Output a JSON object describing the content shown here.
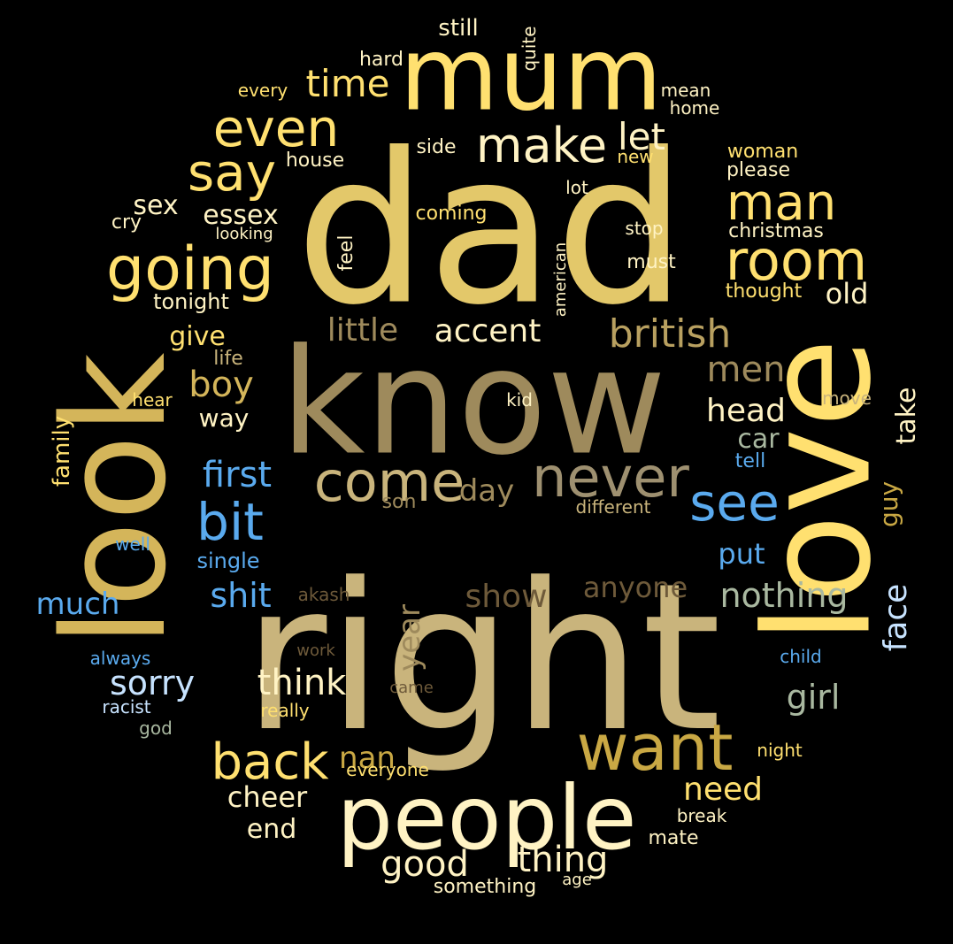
{
  "colors": {
    "background": "#000000",
    "gold": "#e3c86a",
    "yellow": "#ffe070",
    "khaki": "#c9b47c",
    "tan": "#9e8a5c",
    "brown": "#6e5a3a",
    "blue": "#5aaaee",
    "pale": "#fff3c4",
    "sage": "#a9b8a0"
  },
  "words": [
    "dad",
    "right",
    "know",
    "love",
    "look",
    "mum",
    "people",
    "want",
    "come",
    "never",
    "going",
    "room",
    "say",
    "even",
    "make",
    "man",
    "see",
    "bit",
    "british",
    "back",
    "first",
    "let",
    "time",
    "boy",
    "men",
    "head",
    "little",
    "accent",
    "nothing",
    "thing",
    "good",
    "think",
    "sorry",
    "shit",
    "face",
    "girl",
    "need",
    "show",
    "year",
    "anyone",
    "nan",
    "day",
    "car",
    "take",
    "much",
    "essex",
    "sex",
    "give",
    "old",
    "cheer",
    "end",
    "put",
    "guy",
    "way",
    "family",
    "single",
    "still",
    "hard",
    "quite",
    "every",
    "mean",
    "home",
    "woman",
    "new",
    "please",
    "side",
    "house",
    "lot",
    "cry",
    "looking",
    "coming",
    "christmas",
    "stop",
    "feel",
    "american",
    "must",
    "thought",
    "tonight",
    "life",
    "hear",
    "kid",
    "move",
    "tell",
    "son",
    "different",
    "well",
    "akash",
    "always",
    "work",
    "child",
    "racist",
    "really",
    "came",
    "god",
    "everyone",
    "night",
    "break",
    "mate",
    "something",
    "age"
  ]
}
